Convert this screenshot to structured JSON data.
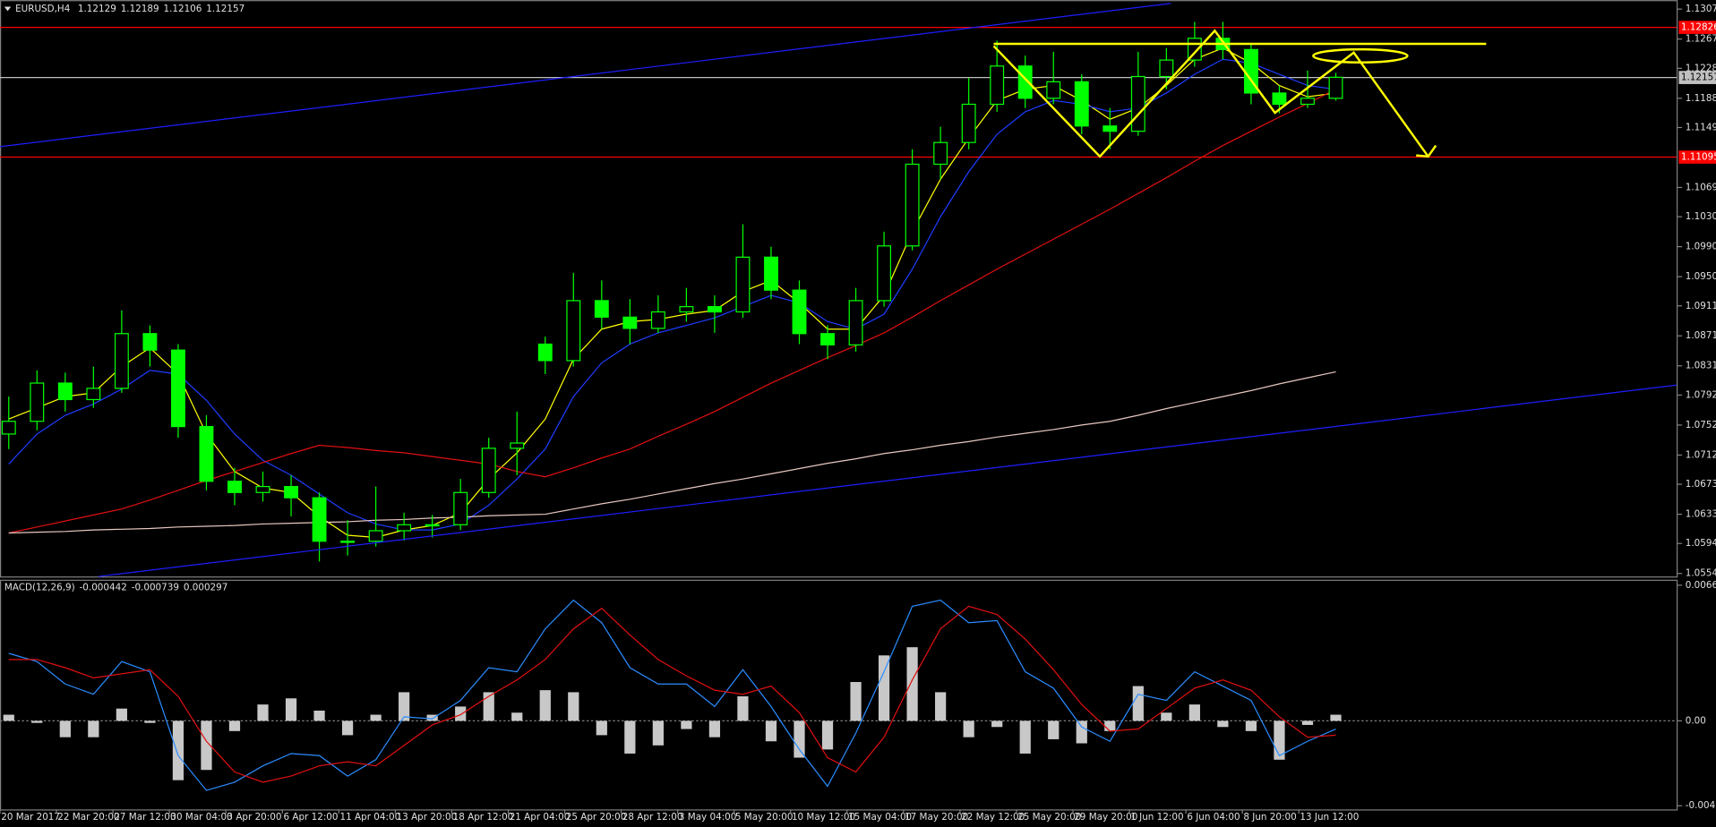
{
  "chart_data": [
    {
      "type": "candlestick",
      "title": "EURUSD,H4",
      "header_values": [
        1.12129,
        1.12189,
        1.12106,
        1.12157
      ],
      "color": "#00ff00",
      "categories": [
        "20 Mar 2017",
        null,
        "22 Mar 20:00",
        null,
        "27 Mar 12:00",
        null,
        "30 Mar 04:00",
        null,
        "3 Apr 20:00",
        null,
        "6 Apr 12:00",
        null,
        "11 Apr 04:00",
        null,
        "13 Apr 20:00",
        null,
        "18 Apr 12:00",
        null,
        "21 Apr 04:00",
        null,
        "25 Apr 20:00",
        null,
        "28 Apr 12:00",
        null,
        "3 May 04:00",
        null,
        "5 May 20:00",
        null,
        "10 May 12:00",
        null,
        "15 May 04:00",
        null,
        "17 May 20:00",
        null,
        "22 May 12:00",
        null,
        "25 May 20:00",
        null,
        "29 May 20:00",
        null,
        "1 Jun 12:00",
        null,
        "6 Jun 04:00",
        null,
        "8 Jun 20:00",
        null,
        "13 Jun 12:00",
        null
      ],
      "open": [
        1.074,
        1.0757,
        1.0808,
        1.0786,
        1.0801,
        1.0874,
        1.0852,
        1.075,
        1.0677,
        1.0662,
        1.067,
        1.0655,
        1.0597,
        1.0597,
        1.0611,
        1.0619,
        1.0619,
        1.0662,
        1.0721,
        1.086,
        1.0838,
        1.0918,
        1.0896,
        1.0881,
        1.0903,
        1.091,
        1.0903,
        1.0976,
        1.0932,
        1.0874,
        1.0859,
        1.0918,
        1.0991,
        1.11,
        1.1129,
        1.118,
        1.1231,
        1.1188,
        1.121,
        1.1151,
        1.1144,
        1.1217,
        1.1239,
        1.1268,
        1.1253,
        1.1195,
        1.118,
        1.1188
      ],
      "high": [
        1.079,
        1.0825,
        1.0822,
        1.083,
        1.0905,
        1.0885,
        1.086,
        1.0765,
        1.0695,
        1.069,
        1.0685,
        1.0662,
        1.0625,
        1.067,
        1.0635,
        1.0632,
        1.068,
        1.0735,
        1.077,
        1.087,
        1.0955,
        1.0945,
        1.092,
        1.0925,
        1.0935,
        1.0925,
        1.102,
        1.099,
        1.0945,
        1.0885,
        1.0935,
        1.101,
        1.112,
        1.115,
        1.1215,
        1.1265,
        1.1245,
        1.125,
        1.122,
        1.1175,
        1.125,
        1.1255,
        1.129,
        1.129,
        1.1262,
        1.1205,
        1.1225,
        1.1222
      ],
      "low": [
        1.072,
        1.0745,
        1.077,
        1.0775,
        1.0795,
        1.083,
        1.0735,
        1.0665,
        1.0645,
        1.065,
        1.063,
        1.057,
        1.0578,
        1.059,
        1.0598,
        1.0602,
        1.0612,
        1.0655,
        1.0685,
        1.082,
        1.083,
        1.088,
        1.086,
        1.0875,
        1.089,
        1.0875,
        1.0895,
        1.092,
        1.086,
        1.084,
        1.085,
        1.091,
        1.0985,
        1.108,
        1.112,
        1.117,
        1.1175,
        1.118,
        1.114,
        1.112,
        1.1138,
        1.12,
        1.123,
        1.124,
        1.118,
        1.1168,
        1.1175,
        1.1185
      ],
      "close": [
        1.0757,
        1.0808,
        1.0786,
        1.0801,
        1.0874,
        1.0852,
        1.075,
        1.0677,
        1.0662,
        1.067,
        1.0655,
        1.0597,
        1.0597,
        1.0611,
        1.0619,
        1.0619,
        1.0662,
        1.0721,
        1.0728,
        1.0838,
        1.0918,
        1.0896,
        1.0881,
        1.0903,
        1.091,
        1.0903,
        1.0976,
        1.0932,
        1.0874,
        1.0859,
        1.0918,
        1.0991,
        1.11,
        1.1129,
        1.118,
        1.1231,
        1.1188,
        1.121,
        1.1151,
        1.1144,
        1.1217,
        1.1239,
        1.1268,
        1.1253,
        1.1195,
        1.118,
        1.1188,
        1.1216
      ],
      "series": [
        {
          "color": "#ffff00",
          "values": [
            1.076,
            1.0775,
            1.079,
            1.0795,
            1.083,
            1.0855,
            1.082,
            1.074,
            1.069,
            1.0668,
            1.0662,
            1.063,
            1.0605,
            1.0602,
            1.0612,
            1.0618,
            1.0635,
            1.068,
            1.0715,
            1.076,
            1.084,
            1.088,
            1.089,
            1.0893,
            1.09,
            1.0905,
            1.093,
            1.0945,
            1.0915,
            1.088,
            1.088,
            1.0925,
            1.101,
            1.108,
            1.1135,
            1.1185,
            1.12,
            1.1205,
            1.1185,
            1.116,
            1.1175,
            1.1205,
            1.124,
            1.1255,
            1.1235,
            1.1205,
            1.119,
            1.1195
          ]
        },
        {
          "color": "#1e3cff",
          "values": [
            1.07,
            1.074,
            1.0765,
            1.078,
            1.08,
            1.0825,
            1.082,
            1.0785,
            1.074,
            1.0705,
            1.0685,
            1.066,
            1.0635,
            1.062,
            1.0612,
            1.0612,
            1.062,
            1.0645,
            1.068,
            1.072,
            1.079,
            1.0835,
            1.086,
            1.0875,
            1.0885,
            1.0895,
            1.091,
            1.0925,
            1.0915,
            1.089,
            1.088,
            1.09,
            1.096,
            1.103,
            1.109,
            1.114,
            1.117,
            1.1185,
            1.118,
            1.117,
            1.1175,
            1.1195,
            1.122,
            1.124,
            1.1235,
            1.122,
            1.1205,
            1.12
          ]
        },
        {
          "color": "#e01010",
          "values": [
            1.0608,
            1.0616,
            1.0624,
            1.0632,
            1.064,
            1.0652,
            1.0665,
            1.0678,
            1.069,
            1.0702,
            1.0714,
            1.0725,
            1.0722,
            1.0718,
            1.0715,
            1.071,
            1.0705,
            1.07,
            1.069,
            1.0683,
            1.0695,
            1.0708,
            1.072,
            1.0737,
            1.0753,
            1.077,
            1.0789,
            1.0808,
            1.0825,
            1.0842,
            1.0858,
            1.0875,
            1.0896,
            1.0918,
            1.0939,
            1.096,
            1.098,
            1.1,
            1.102,
            1.104,
            1.1061,
            1.1082,
            1.1104,
            1.1125,
            1.1144,
            1.1163,
            1.1181,
            1.12
          ]
        },
        {
          "color": "#e8c8c0",
          "values": [
            1.0608,
            1.0609,
            1.061,
            1.0612,
            1.0613,
            1.0614,
            1.0616,
            1.0617,
            1.0618,
            1.062,
            1.0621,
            1.0622,
            1.0623,
            1.0625,
            1.0626,
            1.0628,
            1.0629,
            1.0631,
            1.0632,
            1.0633,
            1.064,
            1.0647,
            1.0653,
            1.066,
            1.0667,
            1.0674,
            1.068,
            1.0687,
            1.0694,
            1.0701,
            1.0707,
            1.0714,
            1.0719,
            1.0725,
            1.073,
            1.0736,
            1.0741,
            1.0746,
            1.0752,
            1.0757,
            1.0765,
            1.0774,
            1.0782,
            1.079,
            1.0798,
            1.0807,
            1.0815,
            1.0823
          ]
        }
      ],
      "levels": [
        {
          "value": 1.12826,
          "color": "#ff0000"
        },
        {
          "value": 1.11095,
          "color": "#ff0000"
        },
        {
          "value": 1.12157,
          "color": "#c0c0c0"
        }
      ],
      "ylim": [
        1.055,
        1.1319
      ],
      "yticks": [
        {
          "value": 1.0554,
          "label": "1.05540"
        },
        {
          "value": 1.0594,
          "label": "1.05940"
        },
        {
          "value": 1.0633,
          "label": "1.06330"
        },
        {
          "value": 1.0673,
          "label": "1.06730"
        },
        {
          "value": 1.0712,
          "label": "1.07120"
        },
        {
          "value": 1.0752,
          "label": "1.07520"
        },
        {
          "value": 1.0792,
          "label": "1.07920"
        },
        {
          "value": 1.0831,
          "label": "1.08310"
        },
        {
          "value": 1.0871,
          "label": "1.08710"
        },
        {
          "value": 1.0911,
          "label": "1.09110"
        },
        {
          "value": 1.095,
          "label": "1.09500"
        },
        {
          "value": 1.099,
          "label": "1.09900"
        },
        {
          "value": 1.103,
          "label": "1.10300"
        },
        {
          "value": 1.1069,
          "label": "1.10690"
        },
        {
          "value": 1.1149,
          "label": "1.11490"
        },
        {
          "value": 1.1188,
          "label": "1.11880"
        },
        {
          "value": 1.1228,
          "label": "1.12280"
        },
        {
          "value": 1.1267,
          "label": "1.12670"
        },
        {
          "value": 1.1307,
          "label": "1.13070"
        }
      ]
    },
    {
      "type": "macd",
      "title": "MACD(12,26,9)",
      "header_values": [
        -0.000442,
        -0.000739,
        0.000297
      ],
      "ylim": [
        -0.00433,
        0.0069
      ],
      "yticks": [
        0.006632,
        {
          "value": 0,
          "label": "0.00"
        },
        -0.004151
      ],
      "histogram": {
        "color": "#c8c8c8",
        "values": [
          0.0003,
          -0.0001,
          -0.0008,
          -0.0008,
          0.0006,
          -0.0001,
          -0.0029,
          -0.0024,
          -0.0005,
          0.0008,
          0.0011,
          0.0005,
          -0.0007,
          0.0003,
          0.0014,
          0.0003,
          0.0007,
          0.0014,
          0.0004,
          0.0015,
          0.0014,
          -0.0007,
          -0.0016,
          -0.0012,
          -0.0004,
          -0.0008,
          0.0012,
          -0.001,
          -0.0018,
          -0.0014,
          0.0019,
          0.0032,
          0.0036,
          0.0014,
          -0.0008,
          -0.0003,
          -0.0016,
          -0.0009,
          -0.0011,
          -0.0005,
          0.0017,
          0.0004,
          0.0008,
          -0.0003,
          -0.0005,
          -0.0019,
          -0.0002,
          0.0003
        ]
      },
      "series": [
        {
          "color": "#2a8cff",
          "values": [
            0.0033,
            0.0029,
            0.0018,
            0.0013,
            0.0029,
            0.0024,
            -0.0017,
            -0.0034,
            -0.003,
            -0.0022,
            -0.0016,
            -0.0017,
            -0.0027,
            -0.0019,
            0.0002,
            0.0001,
            0.001,
            0.0026,
            0.0024,
            0.0045,
            0.0059,
            0.0048,
            0.0026,
            0.0018,
            0.0018,
            0.0007,
            0.0025,
            0.0007,
            -0.0014,
            -0.0032,
            -0.0006,
            0.0024,
            0.0056,
            0.0059,
            0.0048,
            0.0049,
            0.0024,
            0.0016,
            -0.0003,
            -0.001,
            0.0013,
            0.001,
            0.0024,
            0.0017,
            0.001,
            -0.0017,
            -0.001,
            -0.0004
          ]
        },
        {
          "color": "#e01010",
          "values": [
            0.003,
            0.003,
            0.0026,
            0.0021,
            0.0023,
            0.0025,
            0.0012,
            -0.001,
            -0.0025,
            -0.003,
            -0.0027,
            -0.0022,
            -0.002,
            -0.0022,
            -0.0012,
            -0.0002,
            0.0003,
            0.0012,
            0.002,
            0.003,
            0.0045,
            0.0055,
            0.0042,
            0.003,
            0.0022,
            0.0015,
            0.0013,
            0.0017,
            0.0004,
            -0.0018,
            -0.0025,
            -0.0008,
            0.002,
            0.0045,
            0.0056,
            0.0052,
            0.004,
            0.0025,
            0.0008,
            -0.0005,
            -0.0004,
            0.0006,
            0.0016,
            0.002,
            0.0015,
            0.0002,
            -0.0008,
            -0.0007
          ]
        }
      ]
    }
  ]
}
